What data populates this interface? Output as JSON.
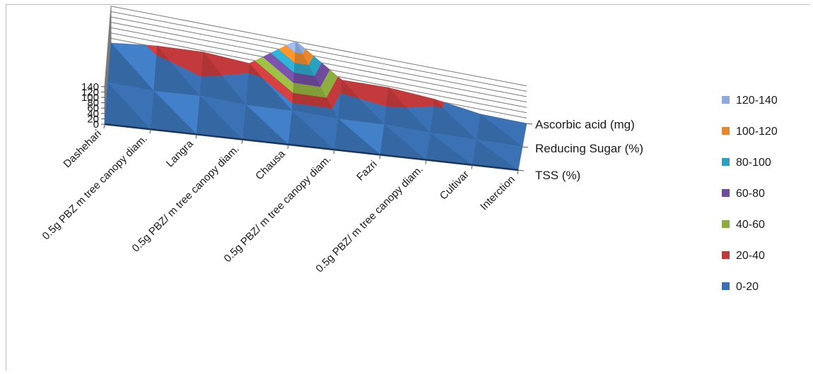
{
  "chart_data": {
    "type": "surface",
    "categories": [
      "Dashehari",
      "0.5g PBZ m tree canopy diam.",
      "Langra",
      "0.5g PBZ/ m tree canopy diam.",
      "Chausa",
      "0.5g PBZ/ m tree canopy diam.",
      "Fazri",
      "0.5g PBZ/ m tree canopy diam.",
      "Cultivar",
      "Interction"
    ],
    "series": [
      {
        "name": "TSS (%)",
        "values": [
          0,
          0,
          0,
          0,
          0,
          0,
          0,
          0,
          0,
          0
        ]
      },
      {
        "name": "Reducing Sugar (%)",
        "values": [
          5,
          0,
          8,
          0,
          4,
          0,
          5,
          0,
          0,
          0
        ]
      },
      {
        "name": "Ascorbic acid (mg)",
        "values": [
          3,
          25,
          35,
          26,
          143,
          30,
          35,
          25,
          2,
          0
        ]
      }
    ],
    "yticks": [
      0,
      20,
      40,
      60,
      80,
      100,
      120,
      140
    ],
    "ylim": [
      0,
      140
    ],
    "legend": {
      "placement": "right",
      "entries": [
        {
          "label": "120-140",
          "color": "#8eaadc"
        },
        {
          "label": "100-120",
          "color": "#e8862a"
        },
        {
          "label": "80-100",
          "color": "#2b9fc0"
        },
        {
          "label": "60-80",
          "color": "#6e4a9c"
        },
        {
          "label": "40-60",
          "color": "#8dac3e"
        },
        {
          "label": "20-40",
          "color": "#c0393b"
        },
        {
          "label": "0-20",
          "color": "#3a71b3"
        }
      ]
    },
    "grid": true
  }
}
